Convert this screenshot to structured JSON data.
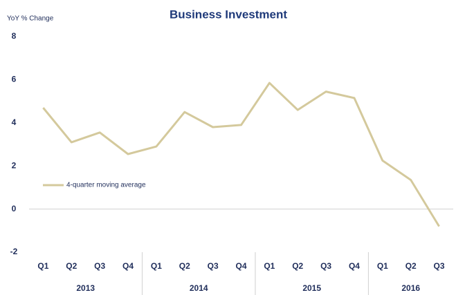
{
  "chart_data": {
    "type": "line",
    "title": "Business Investment",
    "y_label": "YoY % Change",
    "groups": [
      {
        "name": "2013",
        "categories": [
          "Q1",
          "Q2",
          "Q3",
          "Q4"
        ]
      },
      {
        "name": "2014",
        "categories": [
          "Q1",
          "Q2",
          "Q3",
          "Q4"
        ]
      },
      {
        "name": "2015",
        "categories": [
          "Q1",
          "Q2",
          "Q3",
          "Q4"
        ]
      },
      {
        "name": "2016",
        "categories": [
          "Q1",
          "Q2",
          "Q3"
        ]
      }
    ],
    "series": [
      {
        "name": "4-quarter moving average",
        "color": "#d4c99c",
        "values": [
          4.7,
          3.1,
          3.55,
          2.55,
          2.9,
          4.5,
          3.8,
          3.9,
          5.85,
          4.6,
          5.45,
          5.15,
          2.25,
          1.35,
          -0.8
        ]
      }
    ],
    "ylim": [
      -2,
      8
    ],
    "yticks": [
      -2,
      0,
      2,
      4,
      6,
      8
    ],
    "grid": false,
    "legend": "left"
  }
}
